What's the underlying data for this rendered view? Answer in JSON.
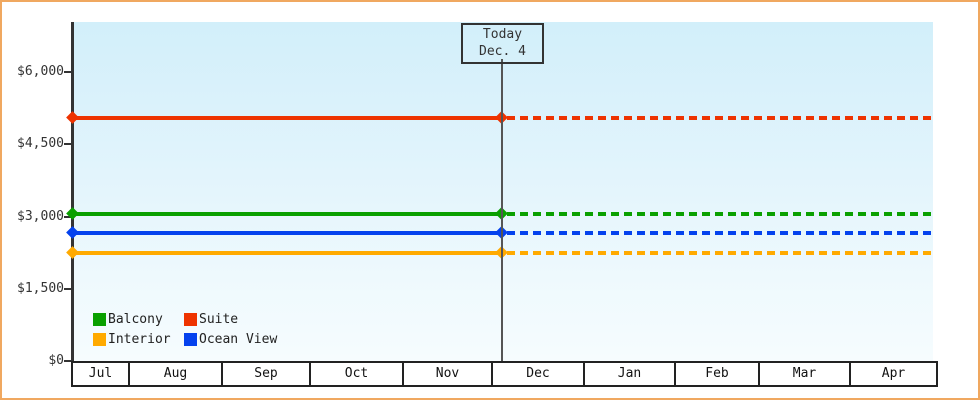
{
  "chart_data": {
    "type": "line",
    "title": "",
    "today_annotation": {
      "line1": "Today",
      "line2": "Dec. 4"
    },
    "x_axis": {
      "label": "",
      "categories": [
        "Jul",
        "Aug",
        "Sep",
        "Oct",
        "Nov",
        "Dec",
        "Jan",
        "Feb",
        "Mar",
        "Apr"
      ]
    },
    "y_axis": {
      "label": "",
      "range": [
        0,
        7000
      ],
      "ticks": [
        {
          "label": "$0",
          "value": 0
        },
        {
          "label": "$1,500",
          "value": 1500
        },
        {
          "label": "$3,000",
          "value": 3000
        },
        {
          "label": "$4,500",
          "value": 4500
        },
        {
          "label": "$6,000",
          "value": 6000
        }
      ]
    },
    "series": [
      {
        "name": "Balcony",
        "color": "#0aa000",
        "value": 3050
      },
      {
        "name": "Suite",
        "color": "#ee3300",
        "value": 5050
      },
      {
        "name": "Interior",
        "color": "#ffaa00",
        "value": 2250
      },
      {
        "name": "Ocean View",
        "color": "#0442ee",
        "value": 2650
      }
    ],
    "legend": {
      "position": "bottom-left",
      "rows": 2,
      "order": [
        "Balcony",
        "Suite",
        "Interior",
        "Ocean View"
      ]
    },
    "grid": false,
    "line_style": "solid before today, dotted projection after today"
  },
  "colors": {
    "frame_border": "#f0a860",
    "plot_bg_top": "#d2effa",
    "plot_bg_bottom": "#f6fcfe",
    "axis": "#333333",
    "text": "#333333"
  }
}
